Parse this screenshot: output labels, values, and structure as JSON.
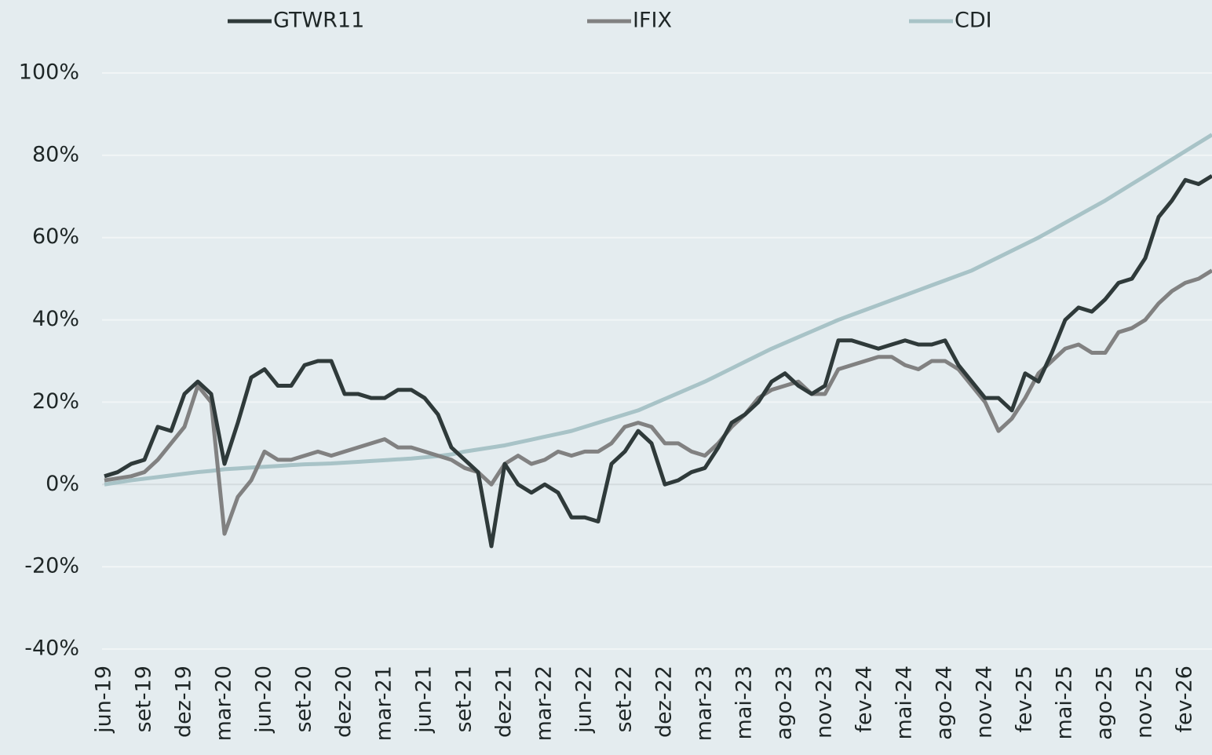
{
  "chart_data": {
    "type": "line",
    "categories": [
      "jun-19",
      null,
      null,
      "set-19",
      null,
      null,
      "dez-19",
      null,
      null,
      "mar-20",
      null,
      null,
      "jun-20",
      null,
      null,
      "set-20",
      null,
      null,
      "dez-20",
      null,
      null,
      "mar-21",
      null,
      null,
      "jun-21",
      null,
      null,
      "set-21",
      null,
      null,
      "dez-21",
      null,
      null,
      "mar-22",
      null,
      null,
      "jun-22",
      null,
      null,
      "set-22",
      null,
      null,
      "dez-22",
      null,
      null,
      "mar-23",
      null,
      null,
      "mai-23",
      null,
      null,
      "ago-23",
      null,
      null,
      "nov-23",
      null,
      null,
      "fev-24",
      null,
      null,
      "mai-24",
      null,
      null,
      "ago-24",
      null,
      null,
      "nov-24",
      null,
      null,
      "fev-25",
      null,
      null,
      "mai-25",
      null,
      null,
      "ago-25",
      null,
      null,
      "nov-25",
      null,
      null,
      "fev-26",
      null,
      null
    ],
    "series": [
      {
        "name": "GTWR11",
        "color": "#2f3a3a",
        "values": [
          2,
          3,
          5,
          6,
          14,
          13,
          22,
          25,
          22,
          5,
          15,
          26,
          28,
          24,
          24,
          29,
          30,
          30,
          22,
          22,
          21,
          21,
          23,
          23,
          21,
          17,
          9,
          6,
          3,
          -15,
          5,
          0,
          -2,
          0,
          -2,
          -8,
          -8,
          -9,
          5,
          8,
          13,
          10,
          0,
          1,
          3,
          4,
          9,
          15,
          17,
          20,
          25,
          27,
          24,
          22,
          24,
          35,
          35,
          34,
          33,
          34,
          35,
          34,
          34,
          35,
          29,
          25,
          21,
          21,
          18,
          27,
          25,
          32,
          40,
          43,
          42,
          45,
          49,
          50,
          55,
          65,
          69,
          74,
          73,
          75
        ]
      },
      {
        "name": "IFIX",
        "color": "#818181",
        "values": [
          1,
          1.5,
          2,
          3,
          6,
          10,
          14,
          24,
          20,
          -12,
          -3,
          1,
          8,
          6,
          6,
          7,
          8,
          7,
          8,
          9,
          10,
          11,
          9,
          9,
          8,
          7,
          6,
          4,
          3,
          0,
          5,
          7,
          5,
          6,
          8,
          7,
          8,
          8,
          10,
          14,
          15,
          14,
          10,
          10,
          8,
          7,
          10,
          14,
          17,
          21,
          23,
          24,
          25,
          22,
          22,
          28,
          29,
          30,
          31,
          31,
          29,
          28,
          30,
          30,
          28,
          24,
          20,
          13,
          16,
          21,
          27,
          30,
          33,
          34,
          32,
          32,
          37,
          38,
          40,
          44,
          47,
          49,
          50,
          52
        ]
      },
      {
        "name": "CDI",
        "color": "#a8c3c7",
        "values": [
          0,
          0.5,
          1,
          1.4,
          1.8,
          2.2,
          2.6,
          3,
          3.3,
          3.7,
          3.9,
          4.1,
          4.3,
          4.5,
          4.7,
          4.9,
          5,
          5.1,
          5.3,
          5.5,
          5.7,
          5.9,
          6.1,
          6.3,
          6.6,
          6.9,
          7.3,
          8,
          8.5,
          9,
          9.5,
          10.2,
          10.9,
          11.6,
          12.3,
          13,
          14,
          15,
          16,
          17,
          18,
          19.4,
          20.8,
          22.2,
          23.6,
          25,
          26.6,
          28.2,
          29.8,
          31.4,
          33,
          34.4,
          35.8,
          37.2,
          38.6,
          40,
          41.2,
          42.4,
          43.6,
          44.8,
          46,
          47.2,
          48.4,
          49.6,
          50.8,
          52,
          53.6,
          55.2,
          56.8,
          58.4,
          60,
          61.8,
          63.6,
          65.4,
          67.2,
          69,
          71,
          73,
          75,
          77,
          79,
          81,
          83,
          85
        ]
      }
    ],
    "ylim": [
      -40,
      100
    ],
    "yticks": [
      {
        "value": -40,
        "label": "-40%"
      },
      {
        "value": -20,
        "label": "-20%"
      },
      {
        "value": 0,
        "label": "0%"
      },
      {
        "value": 20,
        "label": "20%"
      },
      {
        "value": 40,
        "label": "40%"
      },
      {
        "value": 60,
        "label": "60%"
      },
      {
        "value": 80,
        "label": "80%"
      },
      {
        "value": 100,
        "label": "100%"
      }
    ],
    "grid": true,
    "legend": "top"
  }
}
